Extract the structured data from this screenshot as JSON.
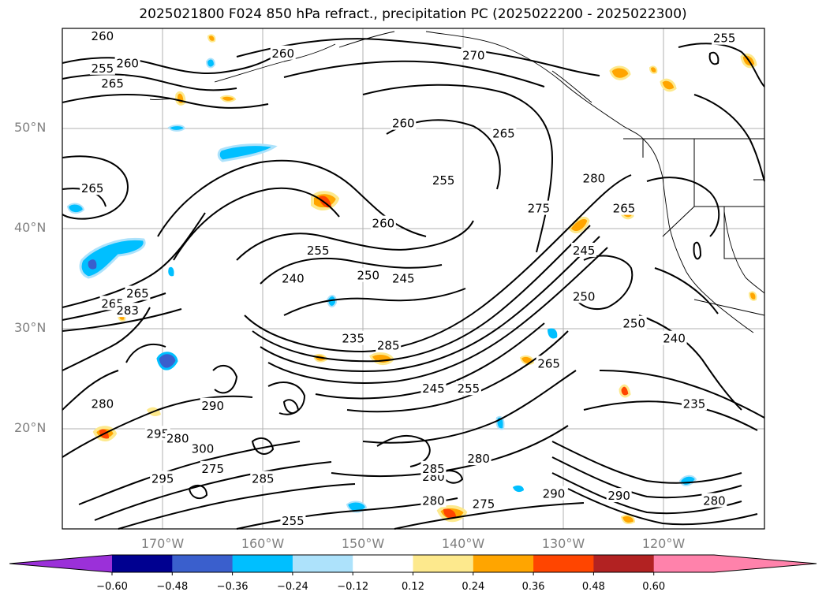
{
  "map": {
    "title": "2025021800 F024 850 hPa refract., precipitation PC (2025022200 - 2025022300)",
    "lat_labels": [
      {
        "value": 50,
        "text": "50°N"
      },
      {
        "value": 40,
        "text": "40°N"
      },
      {
        "value": 30,
        "text": "30°N"
      },
      {
        "value": 20,
        "text": "20°N"
      }
    ],
    "lon_labels": [
      {
        "value": -170,
        "text": "170°W"
      },
      {
        "value": -160,
        "text": "160°W"
      },
      {
        "value": -150,
        "text": "150°W"
      },
      {
        "value": -140,
        "text": "140°W"
      },
      {
        "value": -130,
        "text": "130°W"
      },
      {
        "value": -120,
        "text": "120°W"
      }
    ],
    "extent": {
      "lon_min": -177.5,
      "lon_max": -107.5,
      "lat_min": 10,
      "lat_max": 60
    },
    "contour_labels": [
      {
        "text": "260",
        "lon": -173.5,
        "lat": 59.2
      },
      {
        "text": "255",
        "lon": -173.5,
        "lat": 56.0
      },
      {
        "text": "260",
        "lon": -171.0,
        "lat": 56.5
      },
      {
        "text": "265",
        "lon": -172.5,
        "lat": 54.5
      },
      {
        "text": "260",
        "lon": -155.5,
        "lat": 57.5
      },
      {
        "text": "270",
        "lon": -136.5,
        "lat": 57.3
      },
      {
        "text": "255",
        "lon": -111.5,
        "lat": 59.0
      },
      {
        "text": "260",
        "lon": -143.5,
        "lat": 50.5
      },
      {
        "text": "265",
        "lon": -133.5,
        "lat": 49.5
      },
      {
        "text": "265",
        "lon": -174.5,
        "lat": 44.0
      },
      {
        "text": "255",
        "lon": -139.5,
        "lat": 44.8
      },
      {
        "text": "280",
        "lon": -124.5,
        "lat": 45.0
      },
      {
        "text": "275",
        "lon": -130.0,
        "lat": 42.0
      },
      {
        "text": "260",
        "lon": -145.5,
        "lat": 40.5
      },
      {
        "text": "265",
        "lon": -121.5,
        "lat": 42.0
      },
      {
        "text": "255",
        "lon": -152.0,
        "lat": 37.8
      },
      {
        "text": "245",
        "lon": -125.5,
        "lat": 37.8
      },
      {
        "text": "250",
        "lon": -147.0,
        "lat": 35.3
      },
      {
        "text": "245",
        "lon": -143.5,
        "lat": 35.0
      },
      {
        "text": "240",
        "lon": -154.5,
        "lat": 35.0
      },
      {
        "text": "250",
        "lon": -125.5,
        "lat": 33.2
      },
      {
        "text": "265",
        "lon": -170.0,
        "lat": 33.5
      },
      {
        "text": "265",
        "lon": -172.5,
        "lat": 32.5
      },
      {
        "text": "283",
        "lon": -171.0,
        "lat": 31.8
      },
      {
        "text": "250",
        "lon": -120.5,
        "lat": 30.5
      },
      {
        "text": "235",
        "lon": -148.5,
        "lat": 29.0
      },
      {
        "text": "285",
        "lon": -145.0,
        "lat": 28.3
      },
      {
        "text": "265",
        "lon": -129.0,
        "lat": 26.5
      },
      {
        "text": "240",
        "lon": -116.5,
        "lat": 29.0
      },
      {
        "text": "245",
        "lon": -140.5,
        "lat": 24.0
      },
      {
        "text": "255",
        "lon": -137.0,
        "lat": 24.0
      },
      {
        "text": "280",
        "lon": -173.5,
        "lat": 22.5
      },
      {
        "text": "290",
        "lon": -162.5,
        "lat": 22.3
      },
      {
        "text": "235",
        "lon": -114.5,
        "lat": 22.5
      },
      {
        "text": "295",
        "lon": -168.0,
        "lat": 19.5
      },
      {
        "text": "280",
        "lon": -166.0,
        "lat": 19.0
      },
      {
        "text": "300",
        "lon": -163.5,
        "lat": 18.0
      },
      {
        "text": "280",
        "lon": -136.0,
        "lat": 17.0
      },
      {
        "text": "275",
        "lon": -162.5,
        "lat": 16.0
      },
      {
        "text": "295",
        "lon": -167.5,
        "lat": 15.0
      },
      {
        "text": "285",
        "lon": -157.5,
        "lat": 15.0
      },
      {
        "text": "280",
        "lon": -140.5,
        "lat": 15.2
      },
      {
        "text": "285",
        "lon": -140.5,
        "lat": 16.0
      },
      {
        "text": "290",
        "lon": -128.5,
        "lat": 13.5
      },
      {
        "text": "290",
        "lon": -122.0,
        "lat": 13.3
      },
      {
        "text": "280",
        "lon": -140.5,
        "lat": 12.8
      },
      {
        "text": "275",
        "lon": -135.5,
        "lat": 12.5
      },
      {
        "text": "280",
        "lon": -112.5,
        "lat": 12.8
      },
      {
        "text": "255",
        "lon": -154.5,
        "lat": 10.8
      }
    ]
  },
  "colorbar": {
    "ticks": [
      "−0.60",
      "−0.48",
      "−0.36",
      "−0.24",
      "−0.12",
      "0.12",
      "0.24",
      "0.36",
      "0.48",
      "0.60"
    ],
    "colors": [
      "#9b30d9",
      "#000090",
      "#3a5fcd",
      "#00bfff",
      "#ade2fb",
      "#ffffff",
      "#fde98d",
      "#ffa500",
      "#ff4500",
      "#b22222",
      "#ff82ab",
      "#ff82ab"
    ]
  }
}
